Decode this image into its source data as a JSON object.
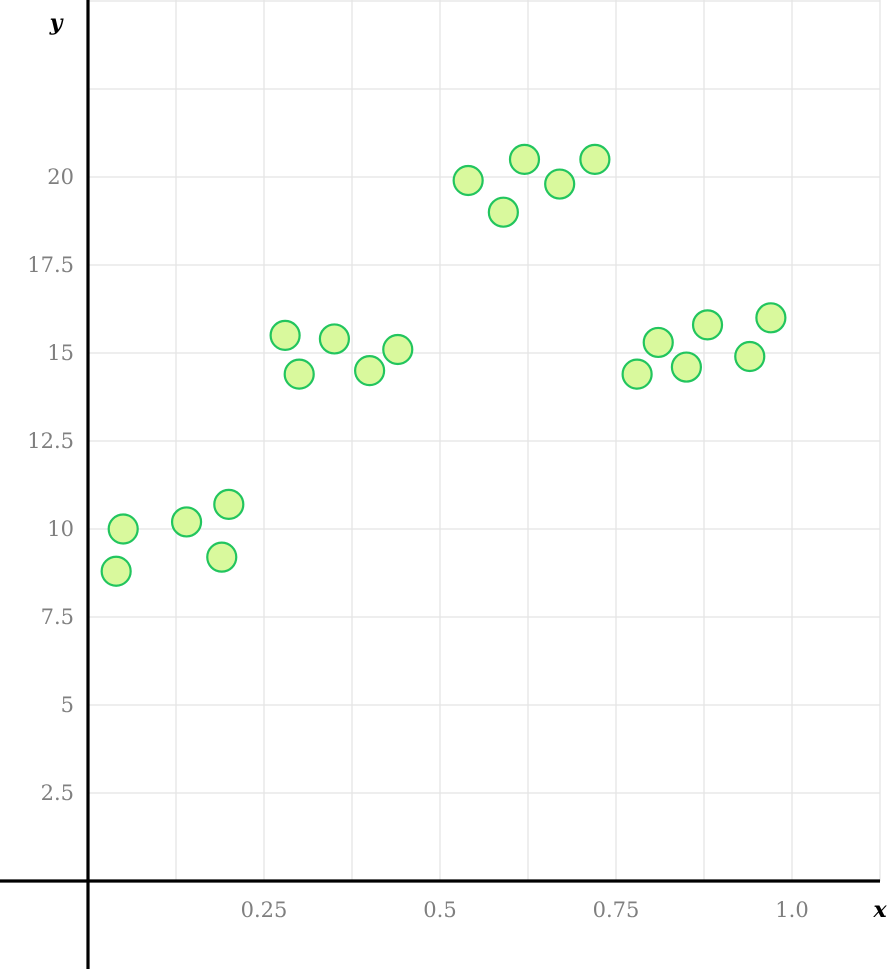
{
  "chart_data": {
    "type": "scatter",
    "title": "",
    "xlabel": "x",
    "ylabel": "y",
    "xlim": [
      0,
      1.12
    ],
    "ylim": [
      -2.5,
      25
    ],
    "grid": true,
    "x_ticks": [
      0.125,
      0.25,
      0.375,
      0.5,
      0.625,
      0.75,
      0.875,
      1.0,
      1.125
    ],
    "y_ticks": [
      2.5,
      5,
      7.5,
      10,
      12.5,
      15,
      17.5,
      20,
      22.5,
      25
    ],
    "x_tick_labels": [
      {
        "value": 0.25,
        "label": "0.25"
      },
      {
        "value": 0.5,
        "label": "0.5"
      },
      {
        "value": 0.75,
        "label": "0.75"
      },
      {
        "value": 1.0,
        "label": "1.0"
      }
    ],
    "y_tick_labels": [
      {
        "value": 2.5,
        "label": "2.5"
      },
      {
        "value": 5,
        "label": "5"
      },
      {
        "value": 7.5,
        "label": "7.5"
      },
      {
        "value": 10,
        "label": "10"
      },
      {
        "value": 12.5,
        "label": "12.5"
      },
      {
        "value": 15,
        "label": "15"
      },
      {
        "value": 17.5,
        "label": "17.5"
      },
      {
        "value": 20,
        "label": "20"
      }
    ],
    "point_fill": "#d9f99d",
    "point_stroke": "#22c55e",
    "series": [
      {
        "x": [
          0.04,
          0.05,
          0.14,
          0.19,
          0.2,
          0.28,
          0.3,
          0.35,
          0.4,
          0.44,
          0.54,
          0.59,
          0.62,
          0.67,
          0.72,
          0.78,
          0.81,
          0.85,
          0.88,
          0.94,
          0.97
        ],
        "y": [
          8.8,
          10.0,
          10.2,
          9.2,
          10.7,
          15.5,
          14.4,
          15.4,
          14.5,
          15.1,
          19.9,
          19.0,
          20.5,
          19.8,
          20.5,
          14.4,
          15.3,
          14.6,
          15.8,
          14.9,
          16.0
        ]
      }
    ]
  }
}
